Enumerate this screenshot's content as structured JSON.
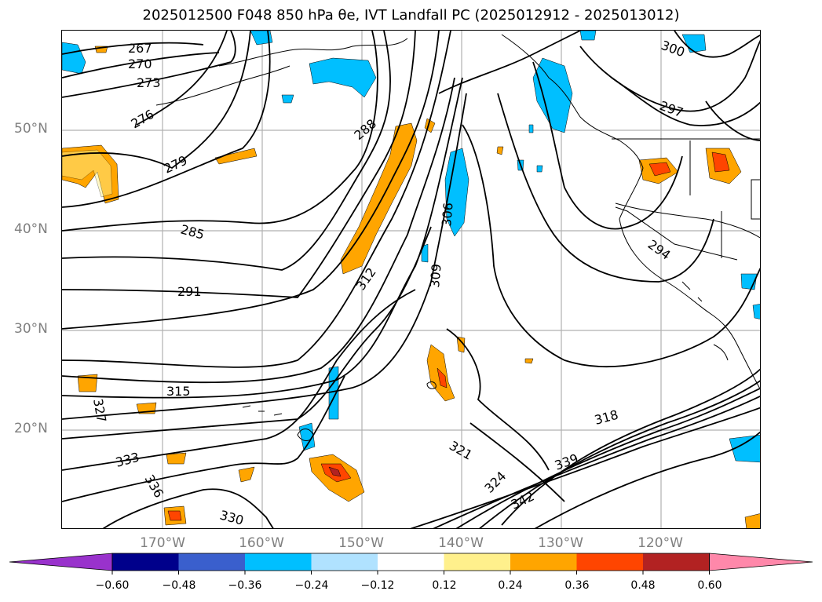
{
  "title": "2025012500 F048 850 hPa θe, IVT Landfall PC (2025012912 - 2025013012)",
  "lat_labels": [
    "50°N",
    "40°N",
    "30°N",
    "20°N"
  ],
  "lon_labels": [
    "170°W",
    "160°W",
    "150°W",
    "140°W",
    "130°W",
    "120°W"
  ],
  "contour_labels": [
    "267",
    "270",
    "273",
    "276",
    "279",
    "285",
    "288",
    "291",
    "294",
    "297",
    "300",
    "306",
    "309",
    "312",
    "315",
    "318",
    "321",
    "324",
    "327",
    "330",
    "333",
    "336",
    "339",
    "342"
  ],
  "colorbar": {
    "tick_labels": [
      "−0.60",
      "−0.48",
      "−0.36",
      "−0.24",
      "−0.12",
      "0.12",
      "0.24",
      "0.36",
      "0.48",
      "0.60"
    ],
    "colors": [
      "#9932cc",
      "#00008b",
      "#3a5fcd",
      "#00bfff",
      "#b0e2ff",
      "#ffffff",
      "#fff08c",
      "#ffa500",
      "#ff4500",
      "#b22222",
      "#ff88aa"
    ]
  }
}
